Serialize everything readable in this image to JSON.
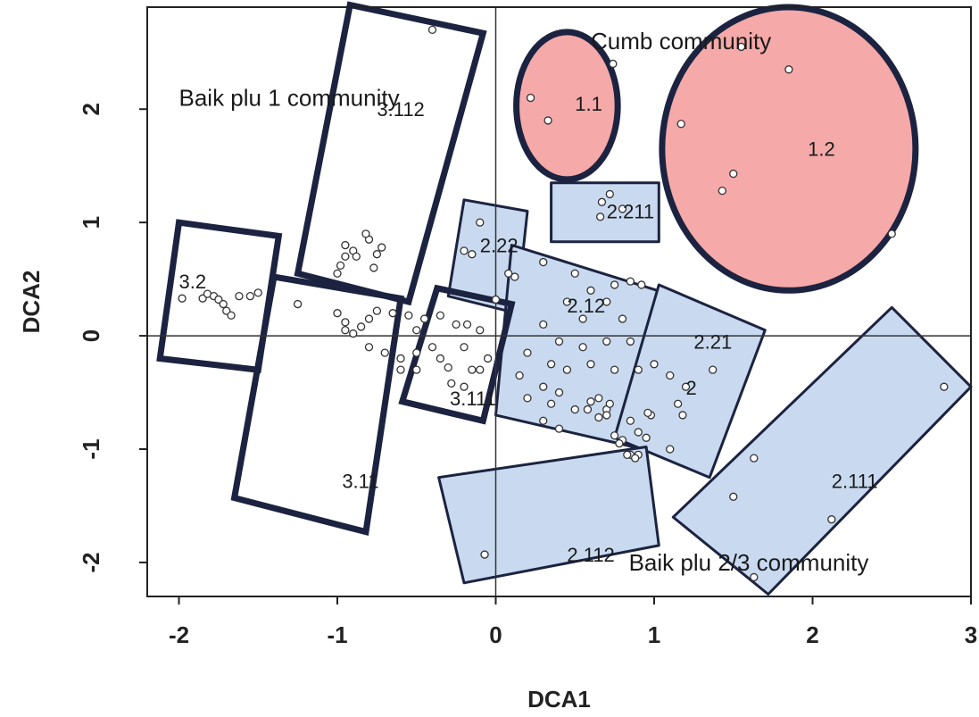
{
  "chart_data": {
    "type": "scatter",
    "xlabel": "DCA1",
    "ylabel": "DCA2",
    "xlim": [
      -2.2,
      3.0
    ],
    "ylim": [
      -2.3,
      2.9
    ],
    "x_ticks": [
      {
        "value": -2,
        "label": "-2"
      },
      {
        "value": -1,
        "label": "-1"
      },
      {
        "value": 0,
        "label": "0"
      },
      {
        "value": 1,
        "label": "1"
      },
      {
        "value": 2,
        "label": "2"
      },
      {
        "value": 3,
        "label": "3"
      }
    ],
    "y_ticks": [
      {
        "value": -2,
        "label": "-2"
      },
      {
        "value": -1,
        "label": "-1"
      },
      {
        "value": 0,
        "label": "0"
      },
      {
        "value": 1,
        "label": "1"
      },
      {
        "value": 2,
        "label": "2"
      }
    ],
    "zero_lines": true,
    "colors": {
      "pink_fill": "#f5a9a9",
      "blue_fill": "#c9daf0",
      "outline": "#1c2340",
      "point": "#333333"
    },
    "groups": [
      {
        "name": "1.1",
        "label": "1.1",
        "fill": "pink",
        "shape": "ellipse",
        "center": [
          0.45,
          2.03
        ],
        "rx": 0.32,
        "ry": 0.65,
        "angle": 0,
        "label_pos": [
          0.5,
          2.05
        ]
      },
      {
        "name": "1.2",
        "label": "1.2",
        "fill": "pink",
        "shape": "ellipse",
        "center": [
          1.85,
          1.65
        ],
        "rx": 0.8,
        "ry": 1.25,
        "angle": 0,
        "label_pos": [
          1.97,
          1.65
        ]
      },
      {
        "name": "2.211",
        "label": "2.211",
        "fill": "blue",
        "shape": "rect",
        "corners": [
          [
            0.35,
            1.35
          ],
          [
            1.03,
            1.35
          ],
          [
            1.03,
            0.83
          ],
          [
            0.35,
            0.83
          ]
        ],
        "label_pos": [
          0.7,
          1.1
        ]
      },
      {
        "name": "2.22",
        "label": "2.22",
        "fill": "blue",
        "shape": "rect",
        "corners": [
          [
            -0.2,
            1.2
          ],
          [
            0.2,
            1.1
          ],
          [
            0.13,
            0.2
          ],
          [
            -0.3,
            0.35
          ]
        ],
        "label_pos": [
          -0.1,
          0.8
        ]
      },
      {
        "name": "2.12",
        "label": "2.12",
        "fill": "blue",
        "shape": "rect",
        "corners": [
          [
            0.1,
            0.8
          ],
          [
            1.02,
            0.4
          ],
          [
            0.87,
            -0.98
          ],
          [
            0.0,
            -0.7
          ]
        ],
        "label_pos": [
          0.45,
          0.27
        ]
      },
      {
        "name": "2.21",
        "label": "2.21",
        "fill": "blue",
        "shape": "rect",
        "corners": [
          [
            1.03,
            0.45
          ],
          [
            1.7,
            0.05
          ],
          [
            1.35,
            -1.25
          ],
          [
            0.75,
            -0.9
          ]
        ],
        "label_pos": [
          1.25,
          -0.05
        ]
      },
      {
        "name": "2.112",
        "label": "2.112",
        "fill": "blue",
        "shape": "rect",
        "corners": [
          [
            -0.36,
            -1.25
          ],
          [
            0.95,
            -0.98
          ],
          [
            1.03,
            -1.85
          ],
          [
            -0.2,
            -2.18
          ]
        ],
        "label_pos": [
          0.45,
          -1.93
        ]
      },
      {
        "name": "2.111",
        "label": "2.111",
        "fill": "blue",
        "shape": "rect",
        "corners": [
          [
            1.12,
            -1.6
          ],
          [
            2.5,
            0.25
          ],
          [
            3.0,
            -0.45
          ],
          [
            1.72,
            -2.28
          ]
        ],
        "label_pos": [
          2.12,
          -1.28
        ]
      },
      {
        "name": "3.112",
        "label": "3.112",
        "fill": "none",
        "shape": "rect",
        "corners": [
          [
            -0.92,
            2.92
          ],
          [
            -0.08,
            2.67
          ],
          [
            -0.55,
            0.3
          ],
          [
            -1.25,
            0.55
          ]
        ],
        "label_pos": [
          -0.75,
          2.0
        ]
      },
      {
        "name": "3.2",
        "label": "3.2",
        "fill": "none",
        "shape": "rect",
        "corners": [
          [
            -2.0,
            1.0
          ],
          [
            -1.37,
            0.88
          ],
          [
            -1.5,
            -0.3
          ],
          [
            -2.12,
            -0.2
          ]
        ],
        "label_pos": [
          -2.0,
          0.48
        ]
      },
      {
        "name": "3.11",
        "label": "3.11",
        "fill": "none",
        "shape": "rect",
        "corners": [
          [
            -1.4,
            0.52
          ],
          [
            -0.6,
            0.33
          ],
          [
            -0.82,
            -1.73
          ],
          [
            -1.65,
            -1.43
          ]
        ],
        "label_pos": [
          -0.97,
          -1.28
        ]
      },
      {
        "name": "3.111",
        "label": "3.111",
        "fill": "none",
        "shape": "rect",
        "corners": [
          [
            -0.37,
            0.42
          ],
          [
            0.1,
            0.28
          ],
          [
            -0.08,
            -0.75
          ],
          [
            -0.59,
            -0.58
          ]
        ],
        "label_pos": [
          -0.29,
          -0.55
        ]
      }
    ],
    "annotations": [
      {
        "text": "Cumb community",
        "pos": [
          0.6,
          2.6
        ],
        "size": 26
      },
      {
        "text": "Baik plu 1 community",
        "pos": [
          -2.0,
          2.1
        ],
        "size": 26
      },
      {
        "text": "Baik plu 2/3 community",
        "pos": [
          0.84,
          -2.0
        ],
        "size": 26
      },
      {
        "text": "2",
        "pos": [
          1.2,
          -0.45
        ],
        "size": 22
      }
    ],
    "points": [
      [
        -0.4,
        2.7
      ],
      [
        0.74,
        2.4
      ],
      [
        1.55,
        2.55
      ],
      [
        1.85,
        2.35
      ],
      [
        0.22,
        2.1
      ],
      [
        0.33,
        1.9
      ],
      [
        1.17,
        1.87
      ],
      [
        1.5,
        1.43
      ],
      [
        1.43,
        1.28
      ],
      [
        2.5,
        0.9
      ],
      [
        0.72,
        1.25
      ],
      [
        0.67,
        1.18
      ],
      [
        0.8,
        1.12
      ],
      [
        0.66,
        1.05
      ],
      [
        -0.1,
        1.0
      ],
      [
        -0.2,
        0.75
      ],
      [
        -0.15,
        0.72
      ],
      [
        0.08,
        0.55
      ],
      [
        0.12,
        0.52
      ],
      [
        0.0,
        0.32
      ],
      [
        0.3,
        0.65
      ],
      [
        0.5,
        0.55
      ],
      [
        0.6,
        0.4
      ],
      [
        0.75,
        0.45
      ],
      [
        0.85,
        0.48
      ],
      [
        0.92,
        0.45
      ],
      [
        0.45,
        0.3
      ],
      [
        0.7,
        0.3
      ],
      [
        0.8,
        0.15
      ],
      [
        0.55,
        0.15
      ],
      [
        0.3,
        0.1
      ],
      [
        0.4,
        -0.05
      ],
      [
        0.55,
        -0.1
      ],
      [
        0.7,
        -0.05
      ],
      [
        0.85,
        -0.05
      ],
      [
        0.2,
        -0.15
      ],
      [
        0.35,
        -0.25
      ],
      [
        0.45,
        -0.3
      ],
      [
        0.6,
        -0.25
      ],
      [
        0.75,
        -0.3
      ],
      [
        0.9,
        -0.3
      ],
      [
        0.15,
        -0.35
      ],
      [
        0.3,
        -0.45
      ],
      [
        0.4,
        -0.5
      ],
      [
        0.2,
        -0.55
      ],
      [
        0.35,
        -0.6
      ],
      [
        0.5,
        -0.65
      ],
      [
        0.58,
        -0.65
      ],
      [
        0.6,
        -0.58
      ],
      [
        0.65,
        -0.55
      ],
      [
        0.65,
        -0.72
      ],
      [
        0.7,
        -0.65
      ],
      [
        0.72,
        -0.6
      ],
      [
        0.7,
        -0.7
      ],
      [
        0.85,
        -0.75
      ],
      [
        0.3,
        -0.75
      ],
      [
        0.4,
        -0.82
      ],
      [
        0.9,
        -0.85
      ],
      [
        0.95,
        -0.9
      ],
      [
        0.75,
        -0.88
      ],
      [
        0.8,
        -0.92
      ],
      [
        0.78,
        -0.95
      ],
      [
        0.85,
        -1.05
      ],
      [
        0.9,
        -1.05
      ],
      [
        0.98,
        -0.7
      ],
      [
        1.0,
        -0.25
      ],
      [
        1.1,
        -0.35
      ],
      [
        1.2,
        -0.45
      ],
      [
        1.15,
        -0.6
      ],
      [
        1.18,
        -0.7
      ],
      [
        1.37,
        -0.3
      ],
      [
        0.96,
        -0.68
      ],
      [
        1.1,
        -1.0
      ],
      [
        -1.0,
        0.55
      ],
      [
        -0.98,
        0.62
      ],
      [
        -0.95,
        0.7
      ],
      [
        -0.9,
        0.75
      ],
      [
        -0.8,
        0.85
      ],
      [
        -0.75,
        0.72
      ],
      [
        -0.77,
        0.6
      ],
      [
        -0.88,
        0.7
      ],
      [
        -0.95,
        0.8
      ],
      [
        -0.82,
        0.9
      ],
      [
        -0.72,
        0.78
      ],
      [
        -1.25,
        0.28
      ],
      [
        -1.0,
        0.2
      ],
      [
        -0.95,
        0.12
      ],
      [
        -0.8,
        0.15
      ],
      [
        -0.75,
        0.22
      ],
      [
        -0.65,
        0.2
      ],
      [
        -0.55,
        0.18
      ],
      [
        -0.5,
        0.05
      ],
      [
        -0.45,
        0.15
      ],
      [
        -0.35,
        0.18
      ],
      [
        -0.25,
        0.1
      ],
      [
        -0.18,
        0.1
      ],
      [
        -0.1,
        0.05
      ],
      [
        -0.95,
        0.05
      ],
      [
        -0.9,
        0.02
      ],
      [
        -0.8,
        -0.1
      ],
      [
        -0.7,
        -0.15
      ],
      [
        -0.6,
        -0.2
      ],
      [
        -0.5,
        -0.15
      ],
      [
        -0.4,
        -0.1
      ],
      [
        -0.35,
        -0.2
      ],
      [
        -0.3,
        -0.28
      ],
      [
        -0.2,
        -0.1
      ],
      [
        -0.15,
        -0.3
      ],
      [
        -0.28,
        -0.42
      ],
      [
        -0.2,
        -0.45
      ],
      [
        -0.1,
        -0.3
      ],
      [
        -0.05,
        -0.2
      ],
      [
        -0.6,
        -0.3
      ],
      [
        -0.5,
        -0.3
      ],
      [
        -0.85,
        0.08
      ],
      [
        -1.98,
        0.33
      ],
      [
        -1.85,
        0.33
      ],
      [
        -1.82,
        0.37
      ],
      [
        -1.78,
        0.35
      ],
      [
        -1.75,
        0.32
      ],
      [
        -1.72,
        0.28
      ],
      [
        -1.7,
        0.22
      ],
      [
        -1.67,
        0.18
      ],
      [
        -1.62,
        0.35
      ],
      [
        -1.55,
        0.35
      ],
      [
        -1.5,
        0.38
      ],
      [
        -0.07,
        -1.93
      ],
      [
        0.83,
        -1.05
      ],
      [
        0.88,
        -1.08
      ],
      [
        1.5,
        -1.42
      ],
      [
        1.63,
        -1.08
      ],
      [
        2.12,
        -1.62
      ],
      [
        1.63,
        -2.13
      ],
      [
        2.83,
        -0.45
      ]
    ]
  }
}
